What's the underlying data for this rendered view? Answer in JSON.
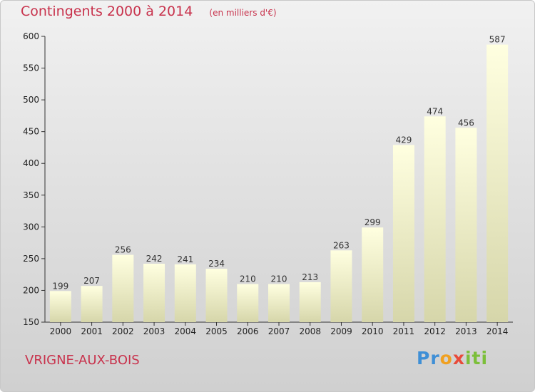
{
  "title": {
    "main": "Contingents 2000 à 2014",
    "unit": "(en milliers d'€)"
  },
  "commune": "VRIGNE-AUX-BOIS",
  "logo": {
    "p1": "Pr",
    "p2": "o",
    "p3": "x",
    "p4": "iti"
  },
  "colors": {
    "title": "#c8324c",
    "bar_top": "#ffffe0",
    "bar_bottom": "#d6d6aa"
  },
  "chart_data": {
    "type": "bar",
    "categories": [
      "2000",
      "2001",
      "2002",
      "2003",
      "2004",
      "2005",
      "2006",
      "2007",
      "2008",
      "2009",
      "2010",
      "2011",
      "2012",
      "2013",
      "2014"
    ],
    "values": [
      199,
      207,
      256,
      242,
      241,
      234,
      210,
      210,
      213,
      263,
      299,
      429,
      474,
      456,
      587
    ],
    "ylim": [
      150,
      600
    ],
    "yticks": [
      150,
      200,
      250,
      300,
      350,
      400,
      450,
      500,
      550,
      600
    ],
    "grid": false,
    "data_labels": true
  }
}
